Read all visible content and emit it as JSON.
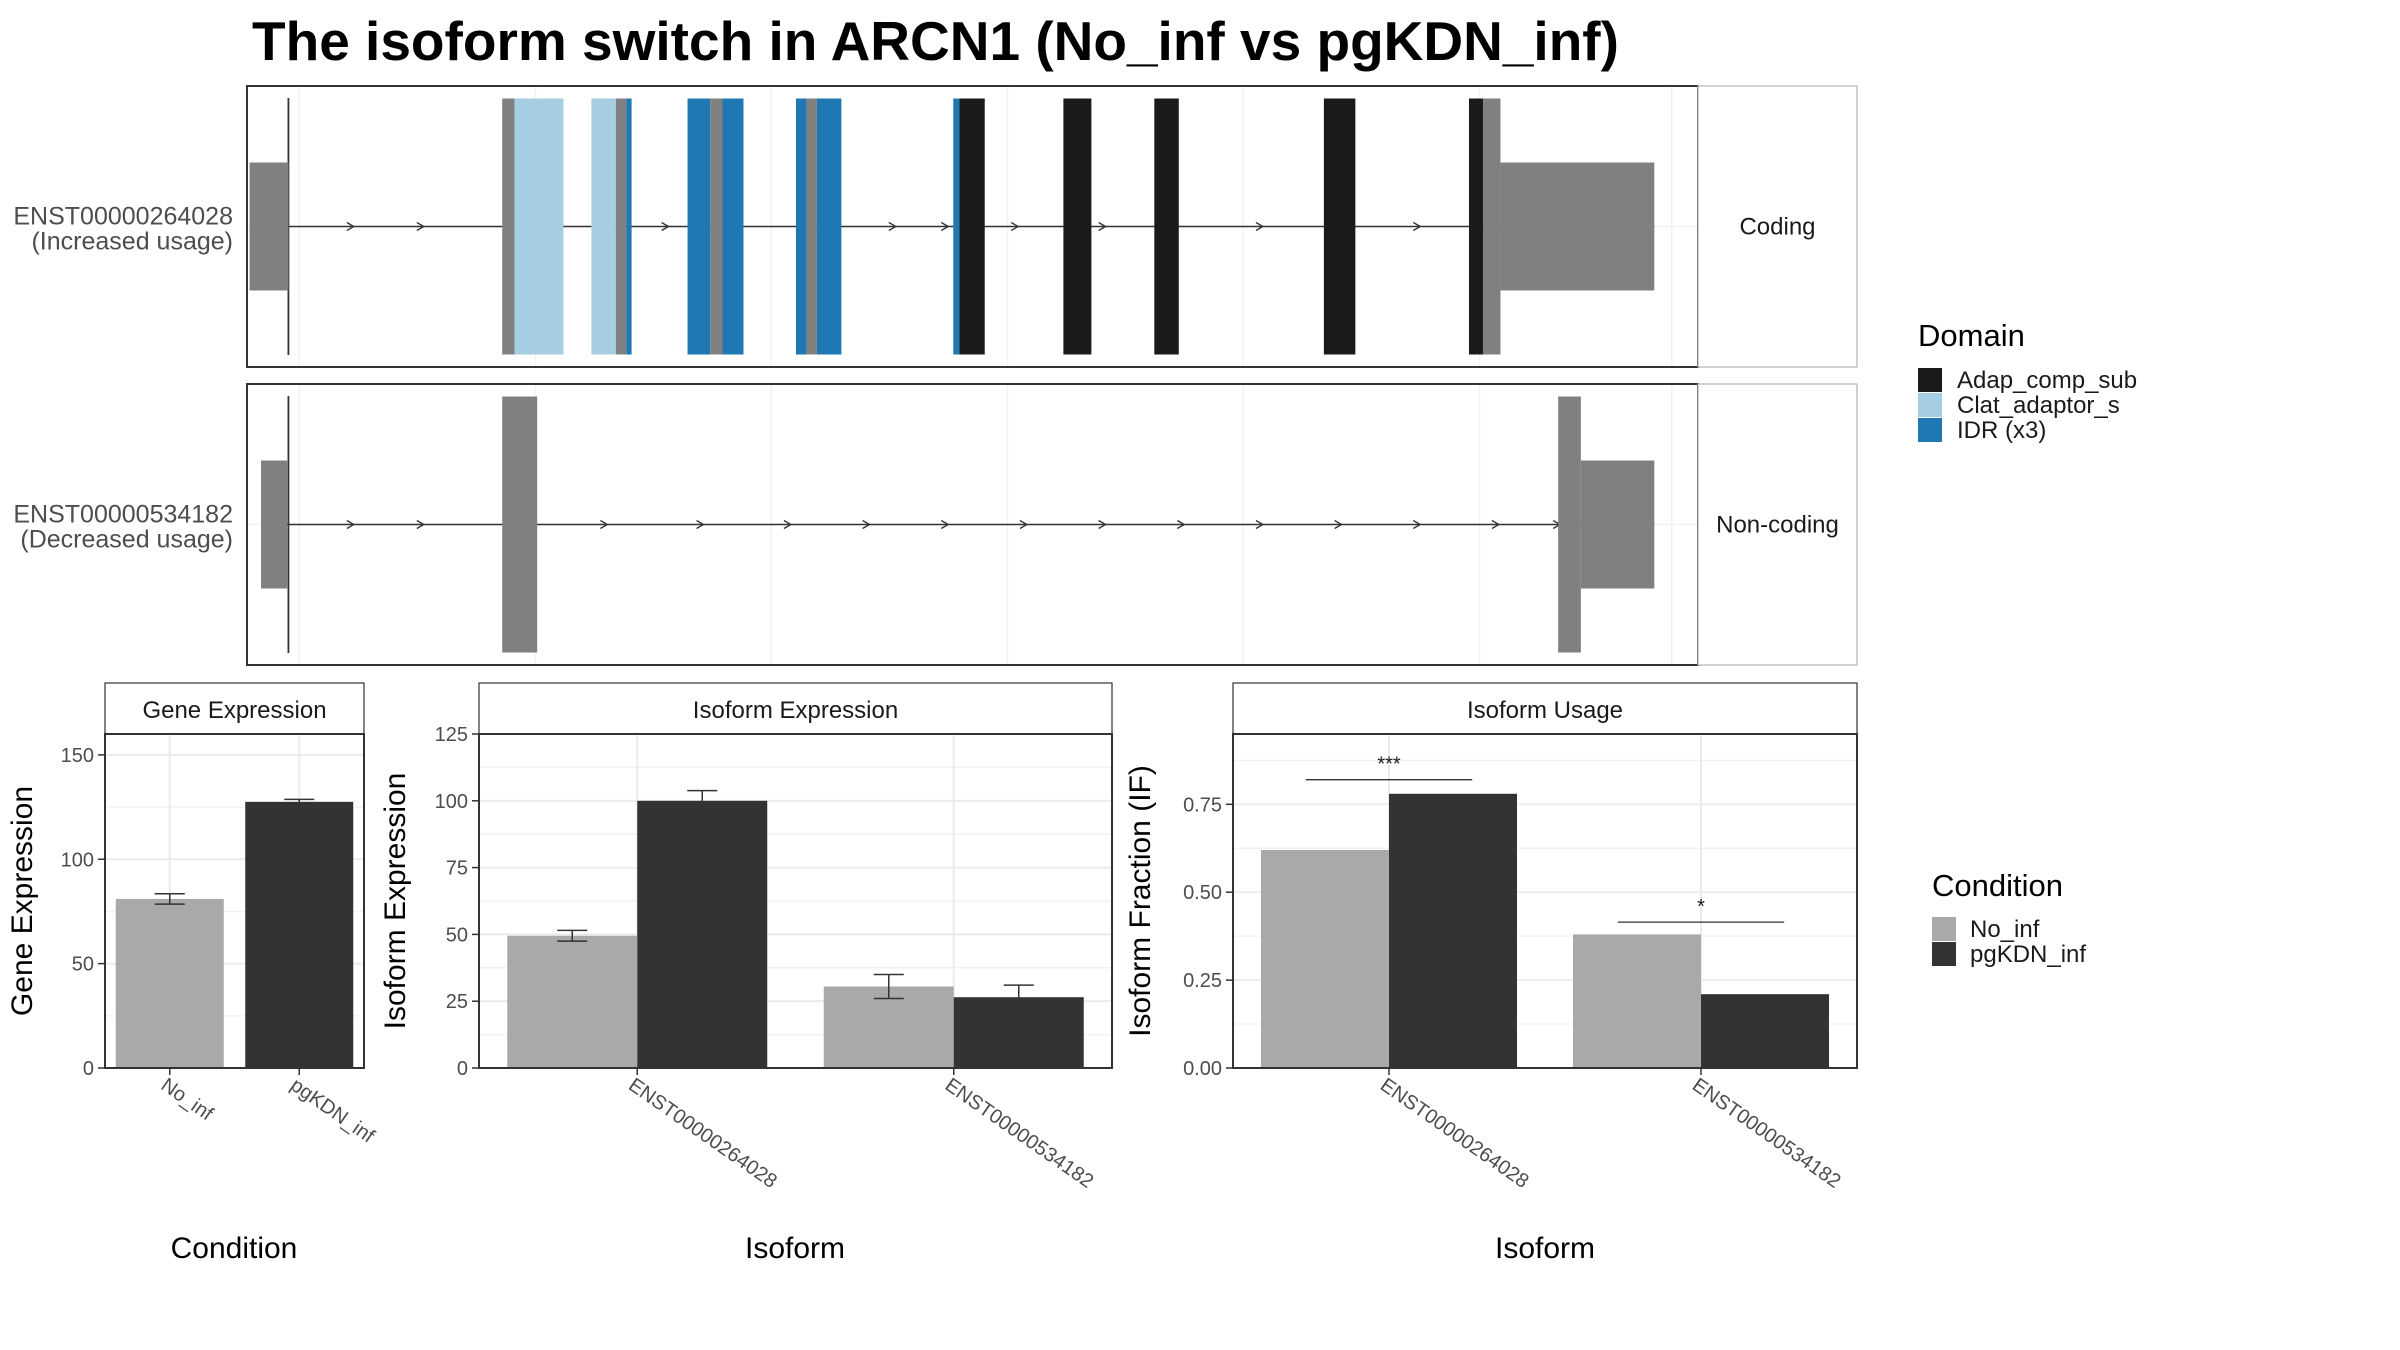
{
  "title": "The isoform switch in ARCN1 (No_inf vs pgKDN_inf)",
  "colors": {
    "exon_grey": "#808080",
    "domain_Adap_comp_sub": "#1a1a1a",
    "domain_Clat_adaptor_s": "#a6cee3",
    "domain_IDR": "#1f78b4",
    "No_inf": "#a9a9a9",
    "pgKDN_inf": "#333333"
  },
  "transcripts": [
    {
      "id": "ENST00000264028",
      "usage_label": "(Increased usage)",
      "coding_label": "Coding",
      "segments": [
        {
          "start": 0.15,
          "end": 2.37,
          "kind": "utr",
          "domain": ""
        },
        {
          "start": 14.6,
          "end": 15.3,
          "kind": "cds",
          "domain": ""
        },
        {
          "start": 15.3,
          "end": 18.1,
          "kind": "cds",
          "domain": "Clat_adaptor_s"
        },
        {
          "start": 19.7,
          "end": 21.1,
          "kind": "cds",
          "domain": "Clat_adaptor_s"
        },
        {
          "start": 21.1,
          "end": 21.7,
          "kind": "cds",
          "domain": ""
        },
        {
          "start": 21.7,
          "end": 22.0,
          "kind": "cds",
          "domain": "IDR"
        },
        {
          "start": 25.2,
          "end": 26.5,
          "kind": "cds",
          "domain": "IDR"
        },
        {
          "start": 26.5,
          "end": 27.2,
          "kind": "cds",
          "domain": ""
        },
        {
          "start": 27.2,
          "end": 28.4,
          "kind": "cds",
          "domain": "IDR"
        },
        {
          "start": 31.4,
          "end": 32.0,
          "kind": "cds",
          "domain": "IDR"
        },
        {
          "start": 32.0,
          "end": 32.6,
          "kind": "cds",
          "domain": ""
        },
        {
          "start": 32.6,
          "end": 34.0,
          "kind": "cds",
          "domain": "IDR"
        },
        {
          "start": 40.4,
          "end": 40.75,
          "kind": "cds",
          "domain": "IDR"
        },
        {
          "start": 40.75,
          "end": 42.2,
          "kind": "cds",
          "domain": "Adap_comp_sub"
        },
        {
          "start": 46.7,
          "end": 48.3,
          "kind": "cds",
          "domain": "Adap_comp_sub"
        },
        {
          "start": 51.9,
          "end": 53.3,
          "kind": "cds",
          "domain": "Adap_comp_sub"
        },
        {
          "start": 61.6,
          "end": 63.4,
          "kind": "cds",
          "domain": "Adap_comp_sub"
        },
        {
          "start": 69.9,
          "end": 70.7,
          "kind": "cds",
          "domain": "Adap_comp_sub"
        },
        {
          "start": 70.7,
          "end": 71.7,
          "kind": "cds",
          "domain": ""
        },
        {
          "start": 71.7,
          "end": 80.5,
          "kind": "utr",
          "domain": ""
        }
      ],
      "arrows": [
        6,
        10,
        24,
        27,
        37,
        40,
        44,
        49,
        58,
        63,
        67,
        71
      ]
    },
    {
      "id": "ENST00000534182",
      "usage_label": "(Decreased usage)",
      "coding_label": "Non-coding",
      "segments": [
        {
          "start": 0.8,
          "end": 2.3,
          "kind": "utr",
          "domain": ""
        },
        {
          "start": 14.6,
          "end": 16.6,
          "kind": "cds",
          "domain": ""
        },
        {
          "start": 75.0,
          "end": 76.3,
          "kind": "cds",
          "domain": ""
        },
        {
          "start": 76.3,
          "end": 80.5,
          "kind": "utr",
          "domain": ""
        }
      ],
      "arrows": [
        6,
        10,
        20.5,
        26,
        31,
        35.5,
        40,
        44.5,
        49,
        53.5,
        58,
        62.5,
        67,
        71.5,
        75
      ]
    }
  ],
  "domain_legend": {
    "title": "Domain",
    "items": [
      {
        "label": "Adap_comp_sub",
        "key": "domain_Adap_comp_sub"
      },
      {
        "label": "Clat_adaptor_s",
        "key": "domain_Clat_adaptor_s"
      },
      {
        "label": "IDR (x3)",
        "key": "domain_IDR"
      }
    ]
  },
  "condition_legend": {
    "title": "Condition",
    "items": [
      {
        "label": "No_inf",
        "key": "No_inf"
      },
      {
        "label": "pgKDN_inf",
        "key": "pgKDN_inf"
      }
    ]
  },
  "chart_data": [
    {
      "type": "bar",
      "panel": "Gene Expression",
      "categories": [
        "No_inf",
        "pgKDN_inf"
      ],
      "values": [
        81,
        127.5
      ],
      "errors": [
        2.5,
        1.2
      ],
      "xlabel": "Condition",
      "ylabel": "Gene Expression",
      "ylim": [
        0,
        160
      ],
      "yticks": [
        0,
        50,
        100,
        150
      ]
    },
    {
      "type": "bar",
      "panel": "Isoform Expression",
      "categories": [
        "ENST00000264028",
        "ENST00000534182"
      ],
      "series": [
        {
          "name": "No_inf",
          "values": [
            49.5,
            30.5
          ],
          "errors": [
            2,
            4.5
          ]
        },
        {
          "name": "pgKDN_inf",
          "values": [
            100,
            26.5
          ],
          "errors": [
            3.8,
            4.5
          ]
        }
      ],
      "xlabel": "Isoform",
      "ylabel": "Isoform Expression",
      "ylim": [
        0,
        125
      ],
      "yticks": [
        0,
        25,
        50,
        75,
        100,
        125
      ]
    },
    {
      "type": "bar",
      "panel": "Isoform Usage",
      "categories": [
        "ENST00000264028",
        "ENST00000534182"
      ],
      "series": [
        {
          "name": "No_inf",
          "values": [
            0.62,
            0.38
          ]
        },
        {
          "name": "pgKDN_inf",
          "values": [
            0.78,
            0.21
          ]
        }
      ],
      "significance": [
        {
          "category": "ENST00000264028",
          "label": "***",
          "y": 0.82
        },
        {
          "category": "ENST00000534182",
          "label": "*",
          "y": 0.415
        }
      ],
      "xlabel": "Isoform",
      "ylabel": "Isoform Fraction (IF)",
      "ylim": [
        0,
        0.95
      ],
      "yticks": [
        "0.00",
        "0.25",
        "0.50",
        "0.75"
      ]
    }
  ]
}
